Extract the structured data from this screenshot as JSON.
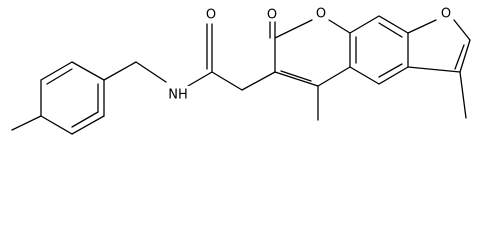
{
  "atoms": {
    "amide_oxygen": "O",
    "amide_nitrogen": "NH",
    "lactone_carbonyl_oxygen": "O",
    "ring_oxygen": "O",
    "furan_oxygen": "O"
  }
}
